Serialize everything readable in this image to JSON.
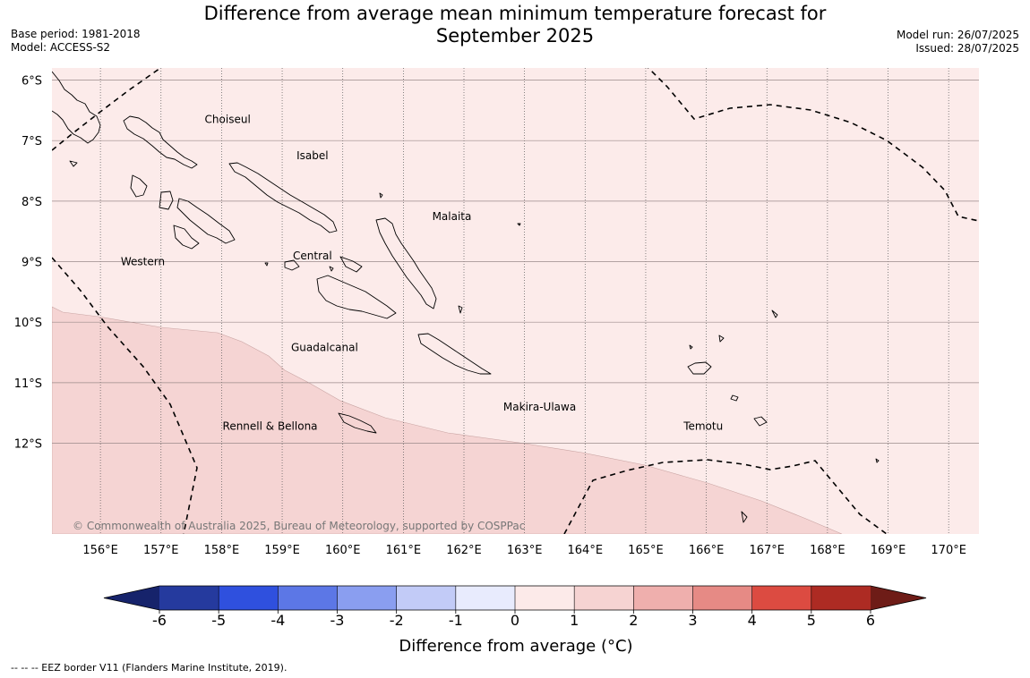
{
  "title_line1": "Difference from average mean minimum temperature forecast for",
  "title_line2": "September 2025",
  "meta_left": {
    "base_period": "Base period: 1981-2018",
    "model": "Model: ACCESS-S2"
  },
  "meta_right": {
    "model_run": "Model run: 26/07/2025",
    "issued": "Issued: 28/07/2025"
  },
  "map": {
    "lon_min": 155.2,
    "lon_max": 170.5,
    "lat_top": -5.8,
    "lat_bottom": -13.5,
    "latitude_labels": [
      {
        "lat": -6,
        "text": "6°S"
      },
      {
        "lat": -7,
        "text": "7°S"
      },
      {
        "lat": -8,
        "text": "8°S"
      },
      {
        "lat": -9,
        "text": "9°S"
      },
      {
        "lat": -10,
        "text": "10°S"
      },
      {
        "lat": -11,
        "text": "11°S"
      },
      {
        "lat": -12,
        "text": "12°S"
      }
    ],
    "longitude_labels": [
      {
        "lon": 156,
        "text": "156°E"
      },
      {
        "lon": 157,
        "text": "157°E"
      },
      {
        "lon": 158,
        "text": "158°E"
      },
      {
        "lon": 159,
        "text": "159°E"
      },
      {
        "lon": 160,
        "text": "160°E"
      },
      {
        "lon": 161,
        "text": "161°E"
      },
      {
        "lon": 162,
        "text": "162°E"
      },
      {
        "lon": 163,
        "text": "163°E"
      },
      {
        "lon": 164,
        "text": "164°E"
      },
      {
        "lon": 165,
        "text": "165°E"
      },
      {
        "lon": 166,
        "text": "166°E"
      },
      {
        "lon": 167,
        "text": "167°E"
      },
      {
        "lon": 168,
        "text": "168°E"
      },
      {
        "lon": 169,
        "text": "169°E"
      },
      {
        "lon": 170,
        "text": "170°E"
      }
    ],
    "regions": [
      {
        "name": "Choiseul",
        "lon": 158.1,
        "lat": -6.65
      },
      {
        "name": "Isabel",
        "lon": 159.5,
        "lat": -7.25
      },
      {
        "name": "Malaita",
        "lon": 161.8,
        "lat": -8.25
      },
      {
        "name": "Western",
        "lon": 156.7,
        "lat": -9.0
      },
      {
        "name": "Central",
        "lon": 159.5,
        "lat": -8.9
      },
      {
        "name": "Guadalcanal",
        "lon": 159.7,
        "lat": -10.42
      },
      {
        "name": "Makira-Ulawa",
        "lon": 163.25,
        "lat": -11.4
      },
      {
        "name": "Temotu",
        "lon": 165.95,
        "lat": -11.72
      },
      {
        "name": "Rennell & Bellona",
        "lon": 158.8,
        "lat": -11.72
      }
    ],
    "copyright": "© Commonwealth of Australia 2025, Bureau of Meteorology, supported by COSPPac",
    "anomaly_zones": [
      {
        "range": "1 to 2",
        "color": "#f5d4d3"
      },
      {
        "range": "0 to 1",
        "color": "#fcebea"
      }
    ]
  },
  "colorbar": {
    "levels": [
      -6,
      -5,
      -4,
      -3,
      -2,
      -1,
      0,
      1,
      2,
      3,
      4,
      5,
      6
    ],
    "tick_labels": [
      "-6",
      "-5",
      "-4",
      "-3",
      "-2",
      "-1",
      "0",
      "1",
      "2",
      "3",
      "4",
      "5",
      "6"
    ],
    "colors": [
      "#253a9e",
      "#2f50de",
      "#5c77e6",
      "#8a9ef0",
      "#c2cbf7",
      "#e8ebfd",
      "#fceae9",
      "#f6d3d2",
      "#efafad",
      "#e68a85",
      "#dc4b41",
      "#ad2b23"
    ],
    "under_color": "#16236b",
    "over_color": "#6e1c17",
    "label": "Difference from average (°C)"
  },
  "footnote": "--  --  -- EEZ border V11 (Flanders Marine Institute, 2019)."
}
